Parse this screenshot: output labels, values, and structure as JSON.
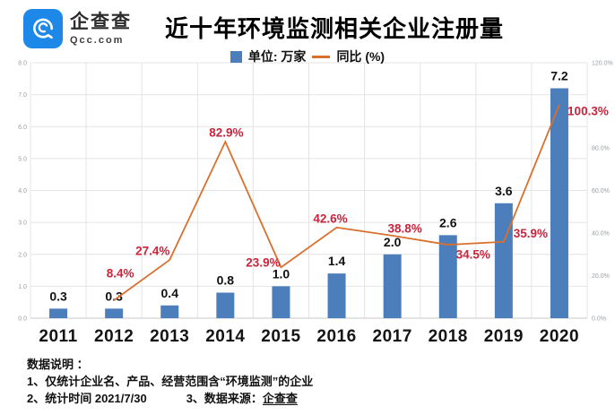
{
  "header": {
    "logo": {
      "name_cn": "企查查",
      "domain": "Qcc.com"
    },
    "title": "近十年环境监测相关企业注册量"
  },
  "legend": {
    "bar_label": "单位: 万家",
    "line_label": "同比 (%)"
  },
  "chart_data": {
    "type": "bar",
    "title": "近十年环境监测相关企业注册量",
    "xlabel": "",
    "ylabel": "",
    "categories": [
      "2011",
      "2012",
      "2013",
      "2014",
      "2015",
      "2016",
      "2017",
      "2018",
      "2019",
      "2020"
    ],
    "series": [
      {
        "name": "单位: 万家",
        "type": "bar",
        "color": "#4C7EBC",
        "values": [
          0.3,
          0.3,
          0.4,
          0.8,
          1.0,
          1.4,
          2.0,
          2.6,
          3.6,
          7.2
        ],
        "labels": [
          "0.3",
          "0.3",
          "0.4",
          "0.8",
          "1.0",
          "1.4",
          "2.0",
          "2.6",
          "3.6",
          "7.2"
        ]
      },
      {
        "name": "同比 (%)",
        "type": "line",
        "color": "#D9702D",
        "label_color": "#C9243C",
        "values": [
          null,
          8.4,
          27.4,
          82.9,
          23.9,
          42.6,
          38.8,
          34.5,
          35.9,
          100.3
        ],
        "labels": [
          "",
          "8.4%",
          "27.4%",
          "82.9%",
          "23.9%",
          "42.6%",
          "38.8%",
          "34.5%",
          "35.9%",
          "100.3%"
        ]
      }
    ],
    "left_axis": {
      "min": 0,
      "max": 8,
      "step": 1,
      "tick_labels": [
        "0.0",
        "1.0",
        "2.0",
        "3.0",
        "4.0",
        "5.0",
        "6.0",
        "7.0",
        "8.0"
      ]
    },
    "right_axis": {
      "min": 0,
      "max": 120,
      "tick_values": [
        0,
        20,
        40,
        60,
        80,
        120
      ],
      "tick_labels": [
        "0.0%",
        "20.0%",
        "40.0%",
        "60.0%",
        "80.0%",
        "120.0%"
      ]
    },
    "grid": true,
    "legend_position": "top"
  },
  "footer": {
    "heading": "数据说明 ：",
    "note1": "1、仅统计企业名、产品、经营范围含“环境监测”的企业",
    "note2": "2、统计时间 2021/7/30",
    "note3_prefix": "3、数据来源：",
    "note3_source": "企查查"
  }
}
